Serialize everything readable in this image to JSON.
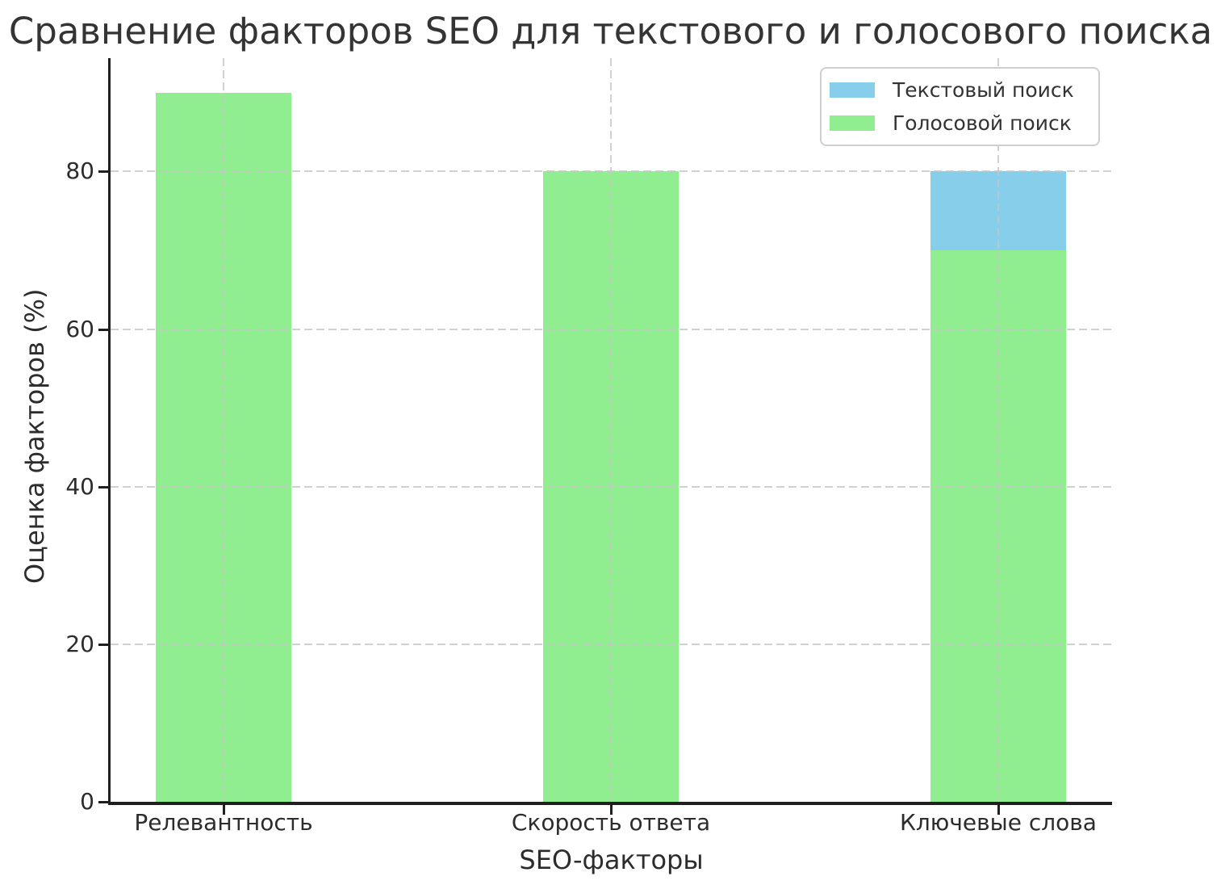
{
  "chart_data": {
    "type": "bar",
    "title": "Сравнение факторов SEO для текстового и голосового поиска",
    "xlabel": "SEO-факторы",
    "ylabel": "Оценка факторов (%)",
    "categories": [
      "Релевантность",
      "Скорость ответа",
      "Ключевые слова"
    ],
    "series": [
      {
        "name": "Текстовый поиск",
        "color": "#87CEEB",
        "values": [
          null,
          null,
          80
        ],
        "note": "Only the bar for 'Ключевые слова' is visible (band from 70 to 80); bars for the first two categories are hidden behind the green series"
      },
      {
        "name": "Голосовой поиск",
        "color": "#90EE90",
        "values": [
          90,
          80,
          70
        ]
      }
    ],
    "yticks": [
      0,
      20,
      40,
      60,
      80
    ],
    "ylim": [
      0,
      94.4
    ],
    "grid": "dashed, both axes, light gray, drawn over bars",
    "legend_position": "upper right",
    "bar_mode": "overlapping (green series drawn on top of blue series)",
    "spines": "left and bottom only, dark"
  }
}
